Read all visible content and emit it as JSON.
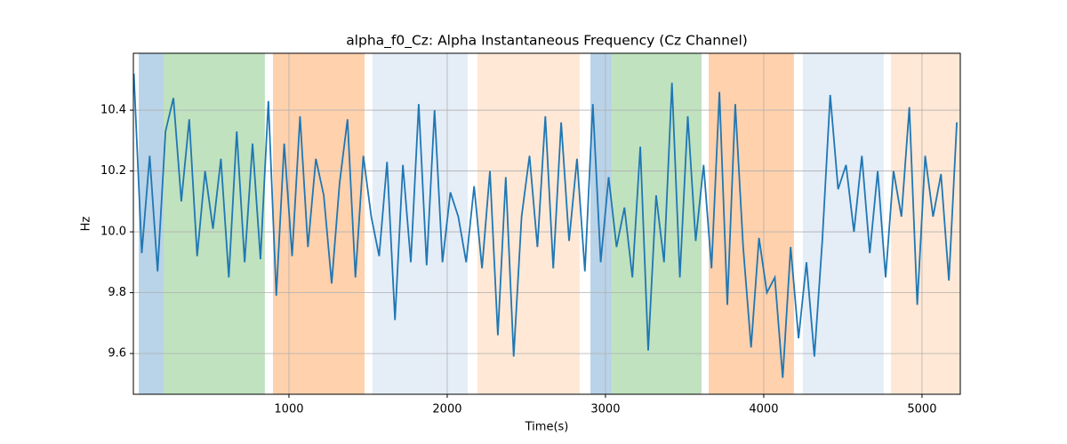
{
  "chart_data": {
    "type": "line",
    "title": "alpha_f0_Cz: Alpha Instantaneous Frequency (Cz Channel)",
    "xlabel": "Time(s)",
    "ylabel": "Hz",
    "xlim": [
      17,
      5242
    ],
    "ylim": [
      9.466,
      10.587
    ],
    "xticks": [
      1000,
      2000,
      3000,
      4000,
      5000
    ],
    "yticks": [
      9.6,
      9.8,
      {
        "value": 10,
        "label": "10.0"
      },
      10.2,
      10.4
    ],
    "grid": true,
    "spans": [
      {
        "start": 51,
        "end": 208,
        "color": "#b9d3e8"
      },
      {
        "start": 208,
        "end": 848,
        "color": "#c0e2bf"
      },
      {
        "start": 899,
        "end": 1478,
        "color": "#ffd1ac"
      },
      {
        "start": 1528,
        "end": 2129,
        "color": "#e5edf7"
      },
      {
        "start": 2191,
        "end": 2837,
        "color": "#ffe8d5"
      },
      {
        "start": 2905,
        "end": 3040,
        "color": "#b9d3e8"
      },
      {
        "start": 3040,
        "end": 3607,
        "color": "#c0e2bf"
      },
      {
        "start": 3652,
        "end": 4191,
        "color": "#ffd1ac"
      },
      {
        "start": 4247,
        "end": 4758,
        "color": "#e5edf7"
      },
      {
        "start": 4804,
        "end": 5242,
        "color": "#ffe8d5"
      }
    ],
    "x": [
      20,
      70,
      120,
      170,
      220,
      270,
      320,
      370,
      420,
      470,
      520,
      570,
      620,
      670,
      720,
      770,
      820,
      870,
      920,
      970,
      1020,
      1070,
      1120,
      1170,
      1220,
      1270,
      1320,
      1370,
      1420,
      1470,
      1520,
      1570,
      1620,
      1670,
      1720,
      1770,
      1820,
      1870,
      1920,
      1970,
      2020,
      2070,
      2120,
      2170,
      2220,
      2270,
      2320,
      2370,
      2420,
      2470,
      2520,
      2570,
      2620,
      2670,
      2720,
      2770,
      2820,
      2870,
      2920,
      2970,
      3020,
      3070,
      3120,
      3170,
      3220,
      3270,
      3320,
      3370,
      3420,
      3470,
      3520,
      3570,
      3620,
      3670,
      3720,
      3770,
      3820,
      3870,
      3920,
      3970,
      4020,
      4070,
      4120,
      4170,
      4220,
      4270,
      4320,
      4370,
      4420,
      4470,
      4520,
      4570,
      4620,
      4670,
      4720,
      4770,
      4820,
      4870,
      4920,
      4970,
      5020,
      5070,
      5120,
      5170,
      5220
    ],
    "series": [
      {
        "name": "alpha_f0_Cz",
        "color": "#1f77b4",
        "values": [
          10.52,
          9.93,
          10.25,
          9.87,
          10.33,
          10.44,
          10.1,
          10.37,
          9.92,
          10.2,
          10.01,
          10.24,
          9.85,
          10.33,
          9.9,
          10.29,
          9.91,
          10.43,
          9.79,
          10.29,
          9.92,
          10.38,
          9.95,
          10.24,
          10.12,
          9.83,
          10.16,
          10.37,
          9.85,
          10.25,
          10.05,
          9.92,
          10.23,
          9.71,
          10.22,
          9.9,
          10.42,
          9.89,
          10.4,
          9.9,
          10.13,
          10.05,
          9.9,
          10.15,
          9.88,
          10.2,
          9.66,
          10.18,
          9.59,
          10.05,
          10.25,
          9.95,
          10.38,
          9.88,
          10.36,
          9.97,
          10.24,
          9.87,
          10.42,
          9.9,
          10.18,
          9.95,
          10.08,
          9.85,
          10.28,
          9.61,
          10.12,
          9.9,
          10.49,
          9.85,
          10.38,
          9.97,
          10.22,
          9.88,
          10.46,
          9.76,
          10.42,
          9.95,
          9.62,
          9.98,
          9.8,
          9.85,
          9.52,
          9.95,
          9.65,
          9.9,
          9.59,
          9.97,
          10.45,
          10.14,
          10.22,
          10.0,
          10.25,
          9.93,
          10.2,
          9.85,
          10.2,
          10.05,
          10.41,
          9.76,
          10.25,
          10.05,
          10.19,
          9.84,
          10.36
        ]
      }
    ]
  }
}
